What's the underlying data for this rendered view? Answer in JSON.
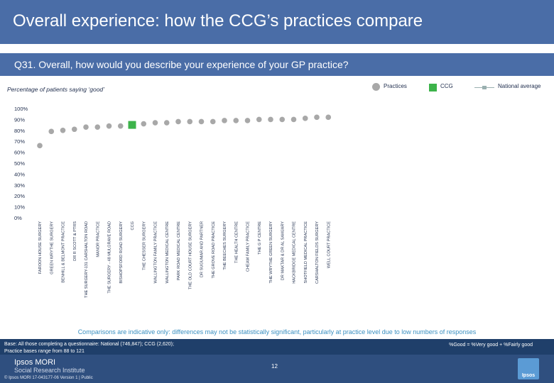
{
  "header": {
    "title": "Overall experience: how the CCG’s practices compare"
  },
  "question": {
    "text": "Q31. Overall, how would you describe your experience of your GP practice?"
  },
  "chart_data": {
    "type": "scatter",
    "subtitle": "Percentage of patients saying ‘good’",
    "legend": {
      "practices": "Practices",
      "ccg": "CCG",
      "national": "National average"
    },
    "y_ticks": [
      "100%",
      "90%",
      "80%",
      "70%",
      "60%",
      "50%",
      "40%",
      "30%",
      "20%",
      "10%",
      "0%"
    ],
    "ylim": [
      0,
      100
    ],
    "categories": [
      "FAROON HOUSE SURGERY",
      "GREEN WRYTHE SURGERY",
      "BENHILL & BELMONT PRACTICE",
      "DR R SCOTT & PTRS",
      "THE SURGERY-131 CARSHALTON ROAD",
      "MANOR PRACTICE",
      "THE SURGERY - 48 MULGRAVE ROAD",
      "BISHOPSFORD ROAD SURGERY",
      "CCG",
      "THE CHESSER SURGERY",
      "WALLINGTON FAMILY PRACTICE",
      "WALLINGTON MEDICAL CENTRE",
      "PARK ROAD MEDICAL CENTRE",
      "THE OLD COURT HOUSE SURGERY",
      "DR SUGUMAR AND PARTNER",
      "THE GROVE ROAD PRACTICE",
      "THE BEECHES SURGERY",
      "THE HEALTH CENTRE",
      "CHEAM FAMILY PRACTICE",
      "THE G P CENTRE",
      "THE WRYTHE GREEN SURGERY",
      "DR MAKTAR & DR AL SAMJARY",
      "HACKBRIDGE MEDICAL CENTRE",
      "SHOTFIELD MEDICAL PRACTICE",
      "CARSHALTON FIELDS SURGERY",
      "WELL COURT PRACTICE"
    ],
    "values": [
      66,
      79,
      80,
      81,
      83,
      83,
      84,
      84,
      85,
      86,
      87,
      87,
      88,
      88,
      88,
      88,
      89,
      89,
      89,
      90,
      90,
      90,
      90,
      91,
      92,
      92
    ],
    "ccg_index": 8,
    "colors": {
      "practice": "#a8a8a8",
      "ccg": "#3cb34a",
      "national": "#9ab0b0",
      "axis_text": "#1f2d4d"
    }
  },
  "notes": {
    "comparison": "Comparisons are indicative only: differences may not be statistically significant, particularly at practice level due to low numbers of responses",
    "base_line1": "Base: All those completing a questionnaire: National (746,847); CCG (2,620);",
    "base_line2": "Practice bases range from 88 to 121",
    "definition": "%Good = %Very good + %Fairly good"
  },
  "footer": {
    "logo_line1": "Ipsos MORI",
    "logo_line2": "Social Research Institute",
    "copyright": "© Ipsos MORI     17-043177-06 Version 1 | Public",
    "page_number": "12",
    "badge": "Ipsos"
  }
}
